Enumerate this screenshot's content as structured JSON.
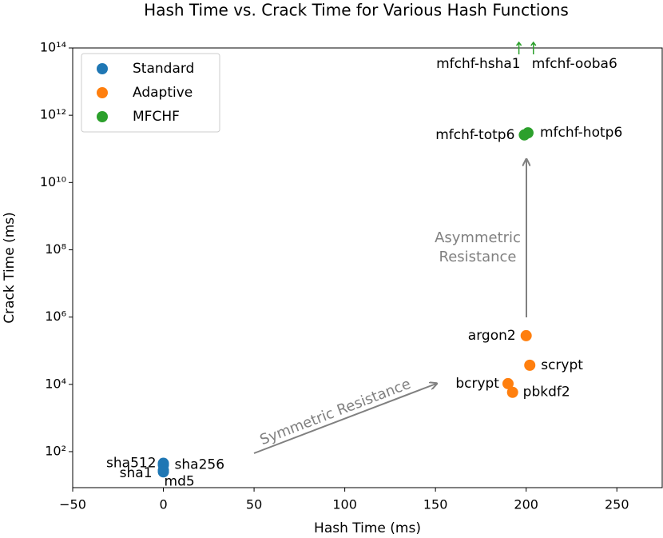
{
  "chart_data": {
    "type": "scatter",
    "title": "Hash Time vs. Crack Time for Various Hash Functions",
    "xlabel": "Hash Time (ms)",
    "ylabel": "Crack Time (ms)",
    "xlim": [
      -50,
      275
    ],
    "ylim": [
      8.5,
      100000000000000
    ],
    "yscale": "log",
    "xticks": [
      {
        "value": -50,
        "label": "−50"
      },
      0,
      50,
      100,
      150,
      200,
      250
    ],
    "yticks": [
      {
        "value": 100,
        "label": "10²"
      },
      {
        "value": 10000,
        "label": "10⁴"
      },
      {
        "value": 1000000,
        "label": "10⁶"
      },
      {
        "value": 100000000,
        "label": "10⁸"
      },
      {
        "value": 10000000000,
        "label": "10¹⁰"
      },
      {
        "value": 1000000000000,
        "label": "10¹²"
      },
      {
        "value": 100000000000000,
        "label": "10¹⁴"
      }
    ],
    "legend": "upper left",
    "series": [
      {
        "name": "Standard",
        "color": "#1f77b4",
        "x": [
          0,
          0,
          0,
          0
        ],
        "values": [
          45,
          40,
          28,
          25
        ],
        "labels": [
          "sha512",
          "sha256",
          "sha1",
          "md5"
        ]
      },
      {
        "name": "Adaptive",
        "color": "#ff7f0e",
        "x": [
          200,
          202,
          190,
          192.5
        ],
        "values": [
          280000,
          37000,
          10500,
          5800
        ],
        "labels": [
          "argon2",
          "scrypt",
          "bcrypt",
          "pbkdf2"
        ]
      },
      {
        "name": "MFCHF",
        "color": "#2ca02c",
        "x": [
          199,
          201,
          196,
          204
        ],
        "values": [
          260000000000,
          300000000000,
          null,
          null
        ],
        "labels": [
          "mfchf-totp6",
          "mfchf-hotp6",
          "mfchf-hsha1",
          "mfchf-ooba6"
        ]
      }
    ],
    "annotations": [
      "Asymmetric\nResistance",
      "Symmetric Resistance"
    ]
  }
}
